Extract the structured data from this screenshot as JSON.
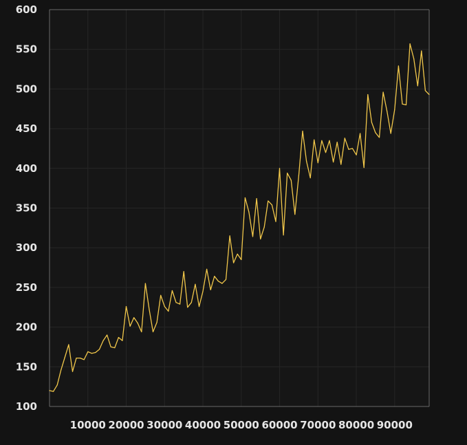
{
  "chart_data": {
    "type": "line",
    "title": "",
    "xlabel": "",
    "ylabel": "",
    "xlim": [
      0,
      99000
    ],
    "ylim": [
      100,
      600
    ],
    "grid": true,
    "colors": {
      "background": "#131313",
      "plot_background": "#161616",
      "grid": "#262626",
      "axis": "#6a6a6a",
      "tick_text": "#e6e6e6",
      "line": "#f2c84b"
    },
    "xticks": [
      "10000",
      "20000",
      "30000",
      "40000",
      "50000",
      "60000",
      "70000",
      "80000",
      "90000"
    ],
    "yticks": [
      "100",
      "150",
      "200",
      "250",
      "300",
      "350",
      "400",
      "450",
      "500",
      "550",
      "600"
    ],
    "series": [
      {
        "x": [
          0,
          1000,
          2000,
          3000,
          4000,
          5000,
          6000,
          7000,
          8000,
          9000,
          10000,
          11000,
          12000,
          13000,
          14000,
          15000,
          16000,
          17000,
          18000,
          19000,
          20000,
          21000,
          22000,
          23000,
          24000,
          25000,
          26000,
          27000,
          28000,
          29000,
          30000,
          31000,
          32000,
          33000,
          34000,
          35000,
          36000,
          37000,
          38000,
          39000,
          40000,
          41000,
          42000,
          43000,
          44000,
          45000,
          46000,
          47000,
          48000,
          49000,
          50000,
          51000,
          52000,
          53000,
          54000,
          55000,
          56000,
          57000,
          58000,
          59000,
          60000,
          61000,
          62000,
          63000,
          64000,
          65000,
          66000,
          67000,
          68000,
          69000,
          70000,
          71000,
          72000,
          73000,
          74000,
          75000,
          76000,
          77000,
          78000,
          79000,
          80000,
          81000,
          82000,
          83000,
          84000,
          85000,
          86000,
          87000,
          88000,
          89000,
          90000,
          91000,
          92000,
          93000,
          94000,
          95000,
          96000,
          97000,
          98000,
          99000
        ],
        "values": [
          120,
          119,
          127,
          146,
          162,
          178,
          144,
          161,
          161,
          159,
          169,
          167,
          168,
          172,
          183,
          190,
          175,
          174,
          187,
          183,
          226,
          201,
          212,
          205,
          194,
          255,
          222,
          194,
          206,
          240,
          226,
          220,
          246,
          231,
          229,
          270,
          225,
          231,
          254,
          226,
          245,
          273,
          247,
          264,
          258,
          255,
          260,
          315,
          281,
          292,
          285,
          363,
          345,
          314,
          362,
          311,
          326,
          359,
          354,
          333,
          400,
          316,
          394,
          385,
          342,
          391,
          447,
          409,
          388,
          436,
          407,
          435,
          420,
          435,
          408,
          433,
          405,
          438,
          424,
          425,
          417,
          444,
          401,
          493,
          458,
          445,
          439,
          496,
          472,
          444,
          474,
          529,
          481,
          480,
          557,
          538,
          504,
          548,
          498,
          493
        ]
      }
    ]
  }
}
